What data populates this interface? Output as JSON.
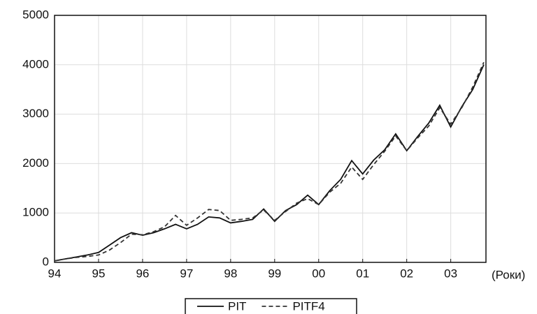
{
  "chart_data": {
    "type": "line",
    "x_label": "(Роки)",
    "x": [
      1994,
      1994.25,
      1994.5,
      1994.75,
      1995,
      1995.25,
      1995.5,
      1995.75,
      1996,
      1996.25,
      1996.5,
      1996.75,
      1997,
      1997.25,
      1997.5,
      1997.75,
      1998,
      1998.25,
      1998.5,
      1998.75,
      1999,
      1999.25,
      1999.5,
      1999.75,
      2000,
      2000.25,
      2000.5,
      2000.75,
      2001,
      2001.25,
      2001.5,
      2001.75,
      2002,
      2002.25,
      2002.5,
      2002.75,
      2003,
      2003.25,
      2003.5,
      2003.75
    ],
    "series": [
      {
        "name": "PIT",
        "color": "#111111",
        "dash": "solid",
        "values": [
          30,
          70,
          110,
          150,
          200,
          350,
          500,
          600,
          550,
          600,
          680,
          770,
          680,
          770,
          920,
          900,
          800,
          830,
          870,
          1080,
          830,
          1050,
          1170,
          1360,
          1170,
          1450,
          1680,
          2060,
          1790,
          2070,
          2280,
          2600,
          2260,
          2550,
          2820,
          3180,
          2740,
          3150,
          3500,
          4000
        ]
      },
      {
        "name": "PITF4",
        "color": "#333333",
        "dash": "dashed",
        "values": [
          30,
          70,
          100,
          120,
          150,
          250,
          400,
          570,
          560,
          620,
          720,
          950,
          750,
          900,
          1070,
          1050,
          850,
          870,
          900,
          1060,
          850,
          1030,
          1200,
          1290,
          1170,
          1420,
          1600,
          1930,
          1680,
          1980,
          2250,
          2560,
          2260,
          2520,
          2760,
          3130,
          2800,
          3130,
          3550,
          4050
        ]
      }
    ],
    "xlim": [
      1994,
      2003.8
    ],
    "xticks": [
      {
        "value": 1994,
        "label": "94"
      },
      {
        "value": 1995,
        "label": "95"
      },
      {
        "value": 1996,
        "label": "96"
      },
      {
        "value": 1997,
        "label": "97"
      },
      {
        "value": 1998,
        "label": "98"
      },
      {
        "value": 1999,
        "label": "99"
      },
      {
        "value": 2000,
        "label": "00"
      },
      {
        "value": 2001,
        "label": "01"
      },
      {
        "value": 2002,
        "label": "02"
      },
      {
        "value": 2003,
        "label": "03"
      }
    ],
    "ylim": [
      0,
      5000
    ],
    "yticks": [
      0,
      1000,
      2000,
      3000,
      4000,
      5000
    ],
    "grid": true,
    "legend": "bottom"
  }
}
